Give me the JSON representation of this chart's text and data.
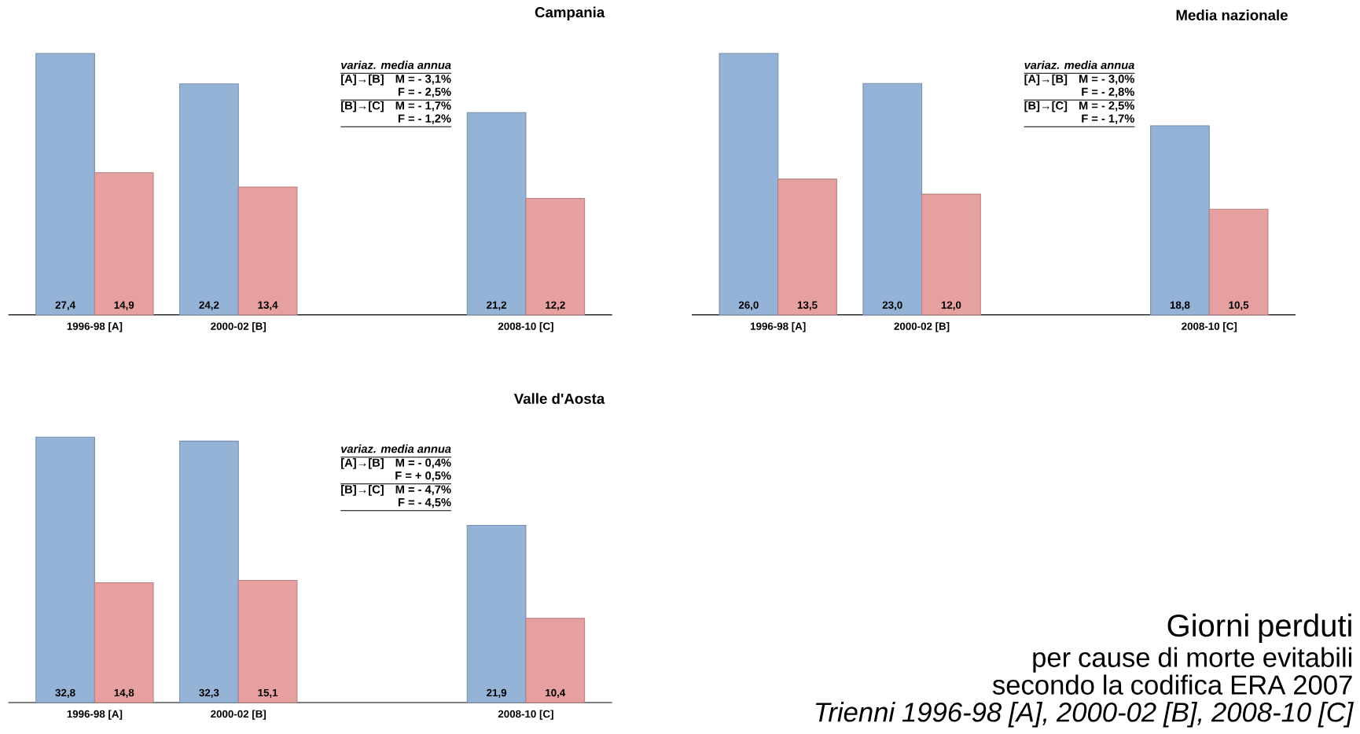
{
  "chart_data": [
    {
      "type": "bar",
      "title": "Campania",
      "categories": [
        "1996-98 [A]",
        "2000-02 [B]",
        null,
        "2008-10 [C]"
      ],
      "tick_labels": "x",
      "series": [
        {
          "color": "#95b3d7",
          "values": [
            27.4,
            24.2,
            null,
            21.2
          ],
          "value_labels": [
            "27,4",
            "24,2",
            null,
            "21,2"
          ]
        },
        {
          "color": "#e6a0a0",
          "values": [
            14.9,
            13.4,
            null,
            12.2
          ],
          "value_labels": [
            "14,9",
            "13,4",
            null,
            "12,2"
          ]
        }
      ],
      "annotations": [
        "variaz. media annua",
        "[A]→[B]",
        "M = - 3,1%",
        "F = - 2,5%",
        "[B]→[C]",
        "M = - 1,7%",
        "F = - 1,2%"
      ]
    },
    {
      "type": "bar",
      "title": "Media nazionale",
      "categories": [
        "1996-98 [A]",
        "2000-02 [B]",
        null,
        "2008-10 [C]"
      ],
      "tick_labels": "x",
      "series": [
        {
          "color": "#95b3d7",
          "values": [
            26.0,
            23.0,
            null,
            18.8
          ],
          "value_labels": [
            "26,0",
            "23,0",
            null,
            "18,8"
          ]
        },
        {
          "color": "#e6a0a0",
          "values": [
            13.5,
            12.0,
            null,
            10.5
          ],
          "value_labels": [
            "13,5",
            "12,0",
            null,
            "10,5"
          ]
        }
      ],
      "annotations": [
        "variaz. media annua",
        "[A]→[B]",
        "M = - 3,0%",
        "F = - 2,8%",
        "[B]→[C]",
        "M = - 2,5%",
        "F = - 1,7%"
      ]
    },
    {
      "type": "bar",
      "title": "Valle d'Aosta",
      "categories": [
        "1996-98 [A]",
        "2000-02 [B]",
        null,
        "2008-10 [C]"
      ],
      "tick_labels": "x",
      "series": [
        {
          "color": "#95b3d7",
          "values": [
            32.8,
            32.3,
            null,
            21.9
          ],
          "value_labels": [
            "32,8",
            "32,3",
            null,
            "21,9"
          ]
        },
        {
          "color": "#e6a0a0",
          "values": [
            14.8,
            15.1,
            null,
            10.4
          ],
          "value_labels": [
            "14,8",
            "15,1",
            null,
            "10,4"
          ]
        }
      ],
      "annotations": [
        "variaz. media annua",
        "[A]→[B]",
        "M = - 0,4%",
        "F = + 0,5%",
        "[B]→[C]",
        "M = - 4,7%",
        "F = - 4,5%"
      ]
    },
    {
      "type": "other",
      "title": "Giorni perduti",
      "subtitle": "per cause di morte evitabili secondo la codifica ERA 2007",
      "annotations": [
        "Trienni 1996-98 [A], 2000-02 [B], 2008-10 [C]"
      ]
    }
  ]
}
